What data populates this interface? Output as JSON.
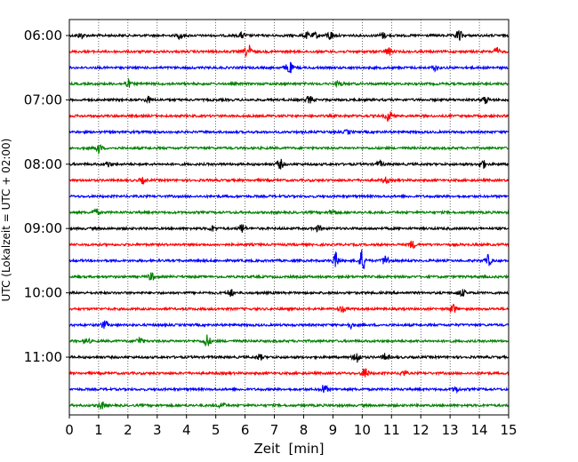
{
  "chart_data": {
    "type": "line",
    "title": "",
    "xlabel": "Zeit  [min]",
    "ylabel": "UTC (Lokalzeit = UTC + 02:00)",
    "xlim": [
      0,
      15
    ],
    "x_ticks": [
      "0",
      "1",
      "2",
      "3",
      "4",
      "5",
      "6",
      "7",
      "8",
      "9",
      "10",
      "11",
      "12",
      "13",
      "14",
      "15"
    ],
    "y_ticks": [
      "06:00",
      "07:00",
      "08:00",
      "09:00",
      "10:00",
      "11:00"
    ],
    "grid_x": true,
    "grid_style": "dotted",
    "trace_interval_min": 15,
    "start": "06:00",
    "colors": [
      "#000000",
      "#ff0000",
      "#0000ff",
      "#008000"
    ],
    "traces": [
      {
        "start": "06:00",
        "color": "#000000",
        "bursts": [
          {
            "t": 0.4,
            "a": 3
          },
          {
            "t": 3.8,
            "a": 3
          },
          {
            "t": 5.9,
            "a": 3
          },
          {
            "t": 8.1,
            "a": 3
          },
          {
            "t": 8.4,
            "a": 3
          },
          {
            "t": 8.9,
            "a": 5
          },
          {
            "t": 10.7,
            "a": 3
          },
          {
            "t": 13.3,
            "a": 6
          }
        ]
      },
      {
        "start": "06:15",
        "color": "#ff0000",
        "bursts": [
          {
            "t": 6.1,
            "a": 8
          },
          {
            "t": 10.9,
            "a": 4
          },
          {
            "t": 14.6,
            "a": 4
          }
        ]
      },
      {
        "start": "06:30",
        "color": "#0000ff",
        "bursts": [
          {
            "t": 7.5,
            "a": 7
          },
          {
            "t": 12.5,
            "a": 3
          }
        ]
      },
      {
        "start": "06:45",
        "color": "#008000",
        "bursts": [
          {
            "t": 2.0,
            "a": 4
          },
          {
            "t": 9.2,
            "a": 3
          }
        ]
      },
      {
        "start": "07:00",
        "color": "#000000",
        "bursts": [
          {
            "t": 2.7,
            "a": 3
          },
          {
            "t": 8.2,
            "a": 4
          },
          {
            "t": 14.2,
            "a": 4
          }
        ]
      },
      {
        "start": "07:15",
        "color": "#ff0000",
        "bursts": [
          {
            "t": 10.9,
            "a": 6
          }
        ]
      },
      {
        "start": "07:30",
        "color": "#0000ff",
        "bursts": [
          {
            "t": 9.5,
            "a": 2
          }
        ]
      },
      {
        "start": "07:45",
        "color": "#008000",
        "bursts": [
          {
            "t": 1.0,
            "a": 5
          }
        ]
      },
      {
        "start": "08:00",
        "color": "#000000",
        "bursts": [
          {
            "t": 1.3,
            "a": 3
          },
          {
            "t": 7.2,
            "a": 5
          },
          {
            "t": 10.6,
            "a": 3
          },
          {
            "t": 14.1,
            "a": 5
          }
        ]
      },
      {
        "start": "08:15",
        "color": "#ff0000",
        "bursts": [
          {
            "t": 2.5,
            "a": 3
          },
          {
            "t": 10.8,
            "a": 3
          }
        ]
      },
      {
        "start": "08:30",
        "color": "#0000ff",
        "bursts": []
      },
      {
        "start": "08:45",
        "color": "#008000",
        "bursts": [
          {
            "t": 0.9,
            "a": 3
          },
          {
            "t": 9.0,
            "a": 3
          }
        ]
      },
      {
        "start": "09:00",
        "color": "#000000",
        "bursts": [
          {
            "t": 5.9,
            "a": 5
          },
          {
            "t": 4.9,
            "a": 3
          },
          {
            "t": 8.5,
            "a": 3
          }
        ]
      },
      {
        "start": "09:15",
        "color": "#ff0000",
        "bursts": [
          {
            "t": 11.7,
            "a": 4
          }
        ]
      },
      {
        "start": "09:30",
        "color": "#0000ff",
        "bursts": [
          {
            "t": 9.1,
            "a": 8
          },
          {
            "t": 10.0,
            "a": 12
          },
          {
            "t": 10.8,
            "a": 6
          },
          {
            "t": 14.3,
            "a": 6
          }
        ]
      },
      {
        "start": "09:45",
        "color": "#008000",
        "bursts": [
          {
            "t": 2.8,
            "a": 4
          }
        ]
      },
      {
        "start": "10:00",
        "color": "#000000",
        "bursts": [
          {
            "t": 5.5,
            "a": 4
          },
          {
            "t": 13.4,
            "a": 4
          }
        ]
      },
      {
        "start": "10:15",
        "color": "#ff0000",
        "bursts": [
          {
            "t": 13.1,
            "a": 5
          },
          {
            "t": 9.3,
            "a": 3
          }
        ]
      },
      {
        "start": "10:30",
        "color": "#0000ff",
        "bursts": [
          {
            "t": 1.2,
            "a": 4
          },
          {
            "t": 9.6,
            "a": 3
          }
        ]
      },
      {
        "start": "10:45",
        "color": "#008000",
        "bursts": [
          {
            "t": 2.4,
            "a": 4
          },
          {
            "t": 4.7,
            "a": 7
          },
          {
            "t": 0.6,
            "a": 3
          }
        ]
      },
      {
        "start": "11:00",
        "color": "#000000",
        "bursts": [
          {
            "t": 9.8,
            "a": 7
          },
          {
            "t": 10.8,
            "a": 4
          },
          {
            "t": 6.5,
            "a": 3
          }
        ]
      },
      {
        "start": "11:15",
        "color": "#ff0000",
        "bursts": [
          {
            "t": 10.1,
            "a": 6
          },
          {
            "t": 11.4,
            "a": 3
          }
        ]
      },
      {
        "start": "11:30",
        "color": "#0000ff",
        "bursts": [
          {
            "t": 8.7,
            "a": 5
          },
          {
            "t": 13.2,
            "a": 3
          }
        ]
      },
      {
        "start": "11:45",
        "color": "#008000",
        "bursts": [
          {
            "t": 1.1,
            "a": 4
          },
          {
            "t": 5.2,
            "a": 3
          }
        ]
      }
    ]
  }
}
